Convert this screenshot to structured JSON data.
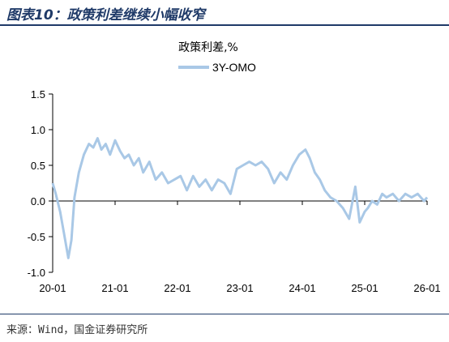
{
  "header": {
    "title": "图表10：政策利差继续小幅收窄"
  },
  "footer": {
    "source": "来源：Wind，国金证券研究所"
  },
  "colors": {
    "header": "#1f3a68",
    "series": "#a9c8e6",
    "axis": "#000000"
  },
  "chart_data": {
    "type": "line",
    "title": "政策利差,%",
    "xlabel": "",
    "ylabel": "",
    "ylim": [
      -1.0,
      1.5
    ],
    "yticks": [
      "1.5",
      "1.0",
      "0.5",
      "0.0",
      "-0.5",
      "-1.0"
    ],
    "xticks": [
      "20-01",
      "21-01",
      "22-01",
      "23-01",
      "24-01",
      "25-01",
      "26-01"
    ],
    "xlim": [
      2020.0,
      2026.0
    ],
    "legend": "top-center",
    "grid": false,
    "series": [
      {
        "name": "3Y-OMO",
        "x": [
          2020.0,
          2020.05,
          2020.12,
          2020.18,
          2020.25,
          2020.3,
          2020.35,
          2020.42,
          2020.5,
          2020.58,
          2020.65,
          2020.72,
          2020.78,
          2020.85,
          2020.92,
          2021.0,
          2021.08,
          2021.15,
          2021.22,
          2021.3,
          2021.38,
          2021.45,
          2021.55,
          2021.65,
          2021.75,
          2021.85,
          2021.95,
          2022.05,
          2022.15,
          2022.25,
          2022.35,
          2022.45,
          2022.55,
          2022.65,
          2022.75,
          2022.85,
          2022.95,
          2023.05,
          2023.15,
          2023.25,
          2023.35,
          2023.45,
          2023.55,
          2023.65,
          2023.75,
          2023.85,
          2023.95,
          2024.05,
          2024.12,
          2024.2,
          2024.28,
          2024.36,
          2024.45,
          2024.55,
          2024.65,
          2024.75,
          2024.85,
          2024.92,
          2025.0,
          2025.05,
          2025.12,
          2025.2,
          2025.28,
          2025.35,
          2025.45,
          2025.55,
          2025.65,
          2025.75,
          2025.85,
          2025.95,
          2026.0
        ],
        "values": [
          0.25,
          0.1,
          -0.15,
          -0.45,
          -0.8,
          -0.55,
          0.05,
          0.4,
          0.65,
          0.8,
          0.75,
          0.88,
          0.72,
          0.8,
          0.65,
          0.85,
          0.7,
          0.6,
          0.65,
          0.5,
          0.6,
          0.4,
          0.55,
          0.3,
          0.4,
          0.25,
          0.3,
          0.35,
          0.15,
          0.35,
          0.2,
          0.3,
          0.15,
          0.3,
          0.25,
          0.1,
          0.45,
          0.5,
          0.55,
          0.5,
          0.55,
          0.45,
          0.25,
          0.4,
          0.3,
          0.5,
          0.65,
          0.72,
          0.6,
          0.4,
          0.3,
          0.15,
          0.05,
          0.0,
          -0.1,
          -0.25,
          0.2,
          -0.3,
          -0.15,
          -0.1,
          0.0,
          -0.05,
          0.1,
          0.05,
          0.1,
          0.0,
          0.1,
          0.05,
          0.1,
          0.0,
          0.05
        ]
      }
    ]
  }
}
